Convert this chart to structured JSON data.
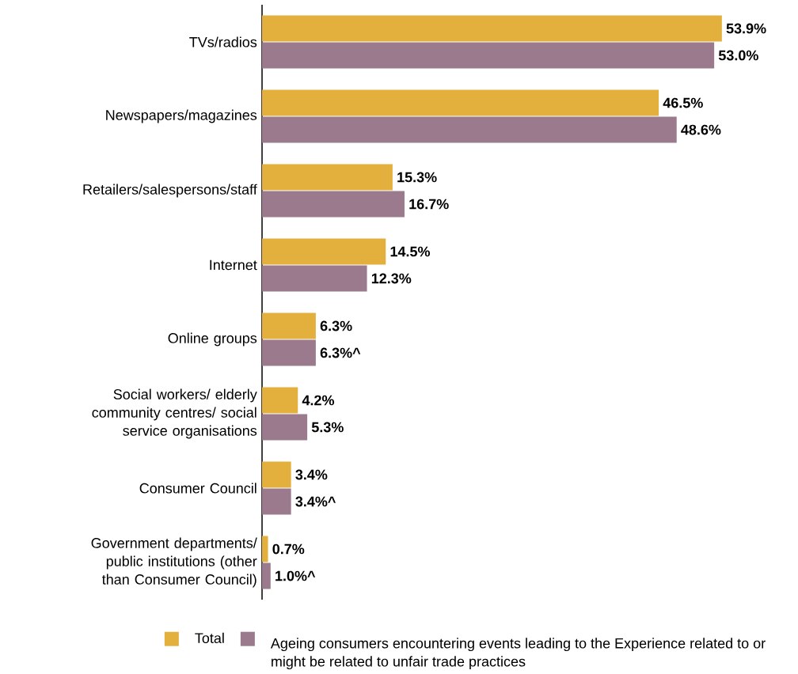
{
  "chart_data": {
    "type": "bar",
    "orientation": "horizontal",
    "legend": "bottom",
    "categories": [
      "TVs/radios",
      "Newspapers/magazines",
      "Retailers/salespersons/staff",
      "Internet",
      "Online groups",
      "Social workers/ elderly community centres/ social service organisations",
      "Consumer Council",
      "Government departments/ public institutions (other than Consumer Council)"
    ],
    "series": [
      {
        "name": "Total",
        "color": "#e3b03e",
        "values": [
          53.9,
          46.5,
          15.3,
          14.5,
          6.3,
          4.2,
          3.4,
          0.7
        ],
        "value_labels": [
          "53.9%",
          "46.5%",
          "15.3%",
          "14.5%",
          "6.3%",
          "4.2%",
          "3.4%",
          "0.7%"
        ]
      },
      {
        "name": "Ageing consumers encountering events leading to the Experience related to or might be related to unfair trade practices",
        "color": "#9a7a8c",
        "values": [
          53.0,
          48.6,
          16.7,
          12.3,
          6.3,
          5.3,
          3.4,
          1.0
        ],
        "value_labels": [
          "53.0%",
          "48.6%",
          "16.7%",
          "12.3%",
          "6.3%^",
          "5.3%",
          "3.4%^",
          "1.0%^"
        ]
      }
    ]
  }
}
